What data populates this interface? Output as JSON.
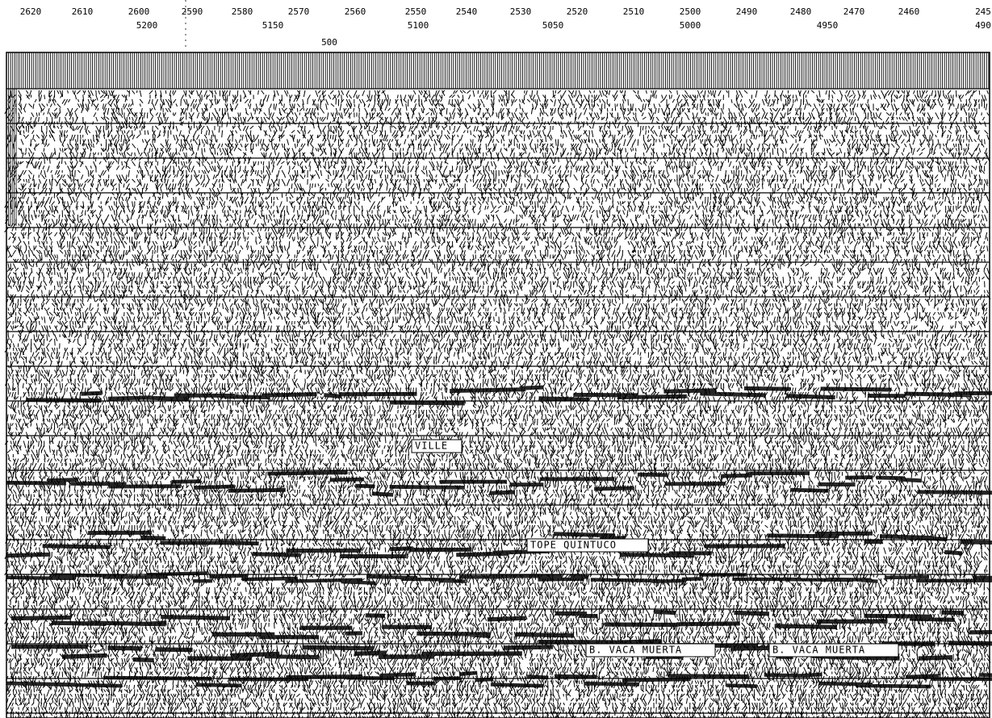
{
  "header": {
    "trace_labels": [
      "2620",
      "2610",
      "2600",
      "2590",
      "2580",
      "2570",
      "2560",
      "2550",
      "2540",
      "2530",
      "2520",
      "2510",
      "2500",
      "2490",
      "2480",
      "2470",
      "2460",
      "245"
    ],
    "cdp_labels": [
      "5200",
      "5150",
      "5100",
      "5050",
      "5000",
      "4950",
      "490"
    ],
    "time_label": "500"
  },
  "annotations": [
    "VILLE",
    "TOPE QUINTUCO",
    "B. VACA MUERTA",
    "B. VACA MUERTA"
  ]
}
